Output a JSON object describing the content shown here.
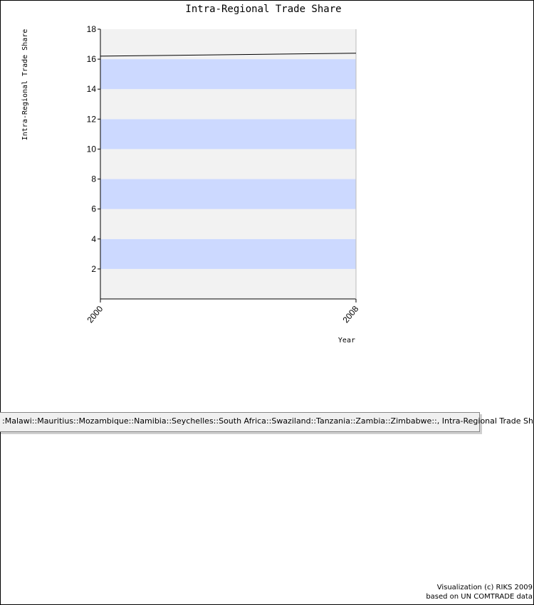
{
  "chart_data": {
    "type": "line",
    "title": "Intra-Regional Trade Share",
    "xlabel": "Year",
    "ylabel": "Intra-Regional Trade Share",
    "x": [
      2000,
      2008
    ],
    "series": [
      {
        "values": [
          16.2,
          16.4
        ]
      }
    ],
    "xticks": [
      "2000",
      "2008"
    ],
    "yticks": [
      "2",
      "4",
      "6",
      "8",
      "10",
      "12",
      "14",
      "16",
      "18"
    ],
    "ylim": [
      0,
      18
    ],
    "xlim": [
      2000,
      2008
    ],
    "band_colors": [
      "#f2f2f2",
      "#ccd9ff"
    ],
    "line_color": "#000000"
  },
  "legend": {
    "text": ":Malawi::Mauritius::Mozambique::Namibia::Seychelles::South Africa::Swaziland::Tanzania::Zambia::Zimbabwe::, Intra-Regional Trade Share"
  },
  "credit": {
    "line1": "Visualization (c) RIKS 2009",
    "line2": "based on UN COMTRADE data"
  }
}
